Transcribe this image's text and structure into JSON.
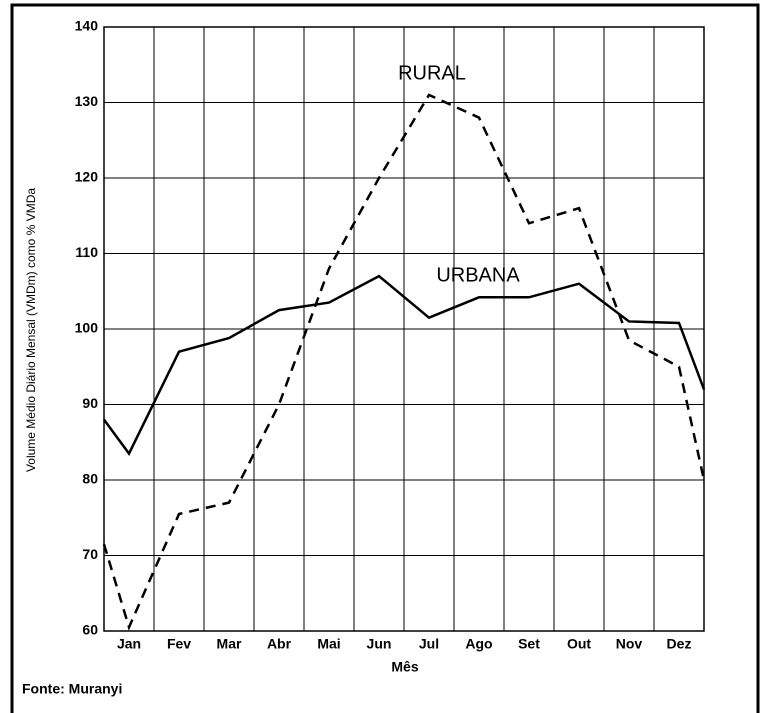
{
  "chart_data": {
    "type": "line",
    "x_label": "Mês",
    "y_label": "Volume Médio Diário Mensal (VMDm) como  % VMDa",
    "source": "Fonte: Muranyi",
    "xlim": [
      0.5,
      12.5
    ],
    "xticks": [
      {
        "value": 1,
        "label": "Jan"
      },
      {
        "value": 2,
        "label": "Fev"
      },
      {
        "value": 3,
        "label": "Mar"
      },
      {
        "value": 4,
        "label": "Abr"
      },
      {
        "value": 5,
        "label": "Mai"
      },
      {
        "value": 6,
        "label": "Jun"
      },
      {
        "value": 7,
        "label": "Jul"
      },
      {
        "value": 8,
        "label": "Ago"
      },
      {
        "value": 9,
        "label": "Set"
      },
      {
        "value": 10,
        "label": "Out"
      },
      {
        "value": 11,
        "label": "Nov"
      },
      {
        "value": 12,
        "label": "Dez"
      }
    ],
    "ylim": [
      60,
      140
    ],
    "yticks": [
      60,
      70,
      80,
      90,
      100,
      110,
      120,
      130,
      140
    ],
    "grid": true,
    "x": [
      0.5,
      1,
      2,
      3,
      4,
      5,
      6,
      7,
      8,
      9,
      10,
      11,
      12,
      12.5
    ],
    "series": [
      {
        "name": "RURAL",
        "color": "#000000",
        "style": "dashed",
        "values": [
          71.5,
          60.5,
          75.5,
          77,
          90,
          108,
          120,
          131,
          128,
          114,
          116,
          98.5,
          95,
          80
        ]
      },
      {
        "name": "URBANA",
        "color": "#000000",
        "style": "solid",
        "values": [
          88,
          83.5,
          97,
          98.8,
          102.5,
          103.5,
          107,
          101.5,
          104.2,
          104.2,
          106,
          101,
          100.8,
          92
        ]
      }
    ]
  }
}
